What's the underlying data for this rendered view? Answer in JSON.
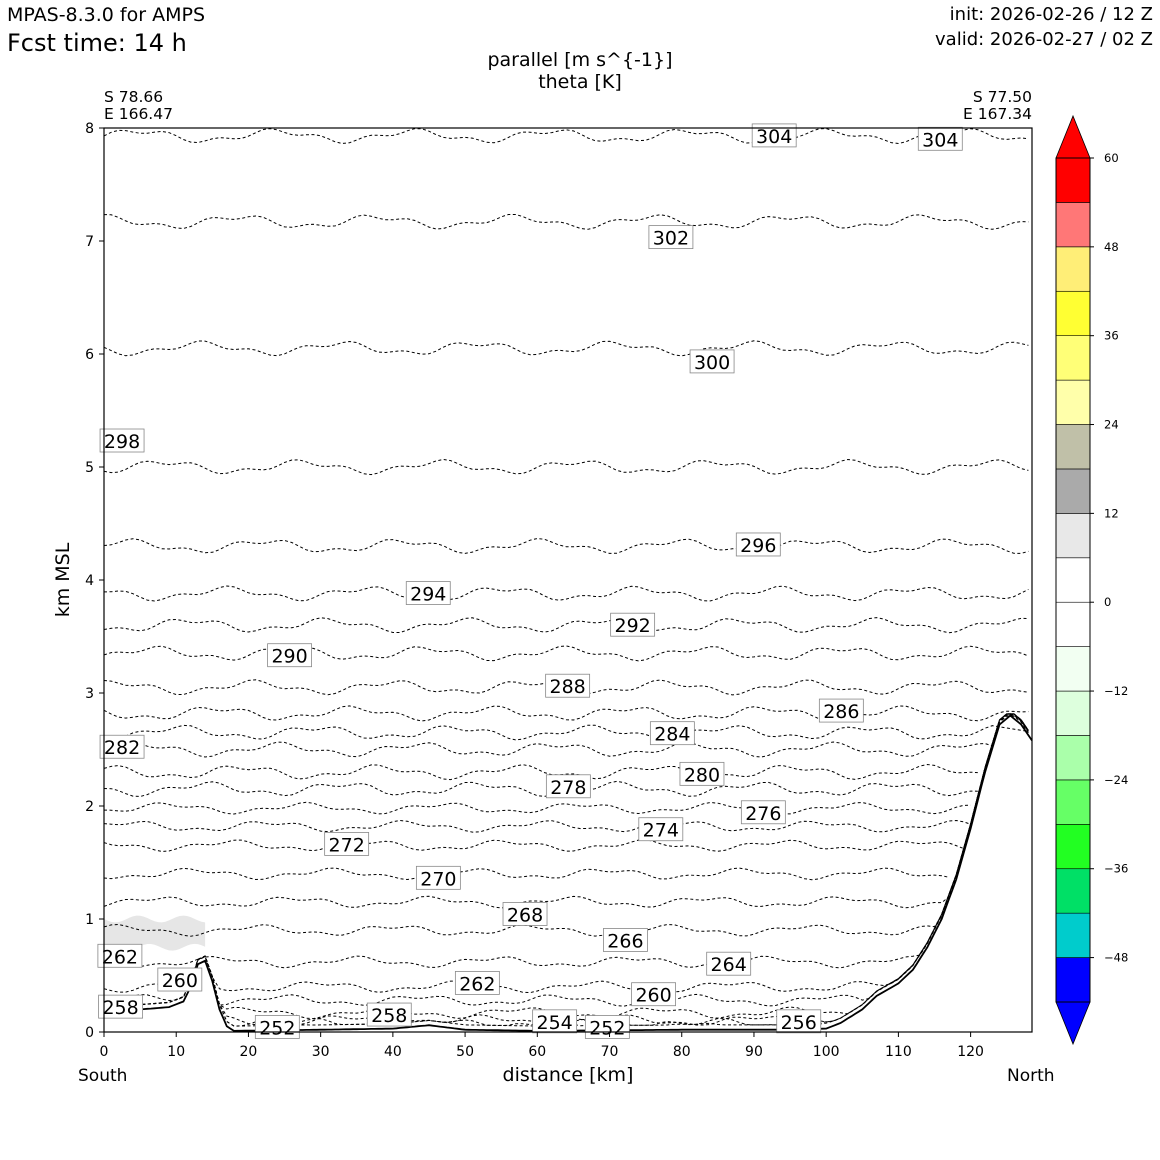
{
  "header": {
    "model": "MPAS-8.3.0 for AMPS",
    "fcst_time": "Fcst time:   14 h",
    "init": "init: 2026-02-26 / 12 Z",
    "valid": "valid: 2026-02-27 / 02 Z"
  },
  "titles": {
    "line1": "parallel [m s^{-1}]",
    "line2": "theta [K]"
  },
  "cross_section": {
    "start_lat": "S 78.66",
    "start_lon": "E 166.47",
    "end_lat": "S 77.50",
    "end_lon": "E 167.34",
    "left_end": "South",
    "right_end": "North"
  },
  "chart_data": {
    "type": "contour",
    "xlabel": "distance [km]",
    "ylabel": "km MSL",
    "xlim": [
      0,
      128.5
    ],
    "ylim": [
      0,
      8
    ],
    "xticks": [
      "0",
      "10",
      "20",
      "30",
      "40",
      "50",
      "60",
      "70",
      "80",
      "90",
      "100",
      "110",
      "120"
    ],
    "yticks": [
      "0",
      "1",
      "2",
      "3",
      "4",
      "5",
      "6",
      "7",
      "8"
    ],
    "contour_levels": [
      {
        "level": 304,
        "h": 7.93
      },
      {
        "level": 302,
        "h": 7.17
      },
      {
        "level": 300,
        "h": 6.05
      },
      {
        "level": 298,
        "h": 5.0
      },
      {
        "level": 296,
        "h": 4.3
      },
      {
        "level": 294,
        "h": 3.88
      },
      {
        "level": 292,
        "h": 3.6
      },
      {
        "level": 290,
        "h": 3.35
      },
      {
        "level": 288,
        "h": 3.05
      },
      {
        "level": 286,
        "h": 2.82
      },
      {
        "level": 284,
        "h": 2.65
      },
      {
        "level": 282,
        "h": 2.5
      },
      {
        "level": 280,
        "h": 2.3
      },
      {
        "level": 278,
        "h": 2.15
      },
      {
        "level": 276,
        "h": 1.98
      },
      {
        "level": 274,
        "h": 1.82
      },
      {
        "level": 272,
        "h": 1.65
      },
      {
        "level": 270,
        "h": 1.4
      },
      {
        "level": 268,
        "h": 1.15
      },
      {
        "level": 266,
        "h": 0.9
      },
      {
        "level": 264,
        "h": 0.62
      },
      {
        "level": 262,
        "h": 0.4
      },
      {
        "level": 260,
        "h": 0.28
      },
      {
        "level": 258,
        "h": 0.17
      },
      {
        "level": 256,
        "h": 0.1
      },
      {
        "level": 254,
        "h": 0.07
      },
      {
        "level": 252,
        "h": 0.05
      }
    ],
    "contour_labels": [
      {
        "text": "304",
        "x": 92.8,
        "y": 7.93
      },
      {
        "text": "304",
        "x": 115.8,
        "y": 7.9
      },
      {
        "text": "302",
        "x": 78.5,
        "y": 7.03
      },
      {
        "text": "300",
        "x": 84.2,
        "y": 5.93
      },
      {
        "text": "298",
        "x": 2.5,
        "y": 5.23
      },
      {
        "text": "296",
        "x": 90.6,
        "y": 4.31
      },
      {
        "text": "294",
        "x": 44.9,
        "y": 3.88
      },
      {
        "text": "292",
        "x": 73.2,
        "y": 3.6
      },
      {
        "text": "290",
        "x": 25.7,
        "y": 3.33
      },
      {
        "text": "288",
        "x": 64.2,
        "y": 3.06
      },
      {
        "text": "286",
        "x": 102.1,
        "y": 2.84
      },
      {
        "text": "284",
        "x": 78.7,
        "y": 2.64
      },
      {
        "text": "282",
        "x": 2.5,
        "y": 2.52
      },
      {
        "text": "280",
        "x": 82.8,
        "y": 2.28
      },
      {
        "text": "278",
        "x": 64.3,
        "y": 2.17
      },
      {
        "text": "276",
        "x": 91.3,
        "y": 1.94
      },
      {
        "text": "274",
        "x": 77.1,
        "y": 1.79
      },
      {
        "text": "272",
        "x": 33.6,
        "y": 1.66
      },
      {
        "text": "270",
        "x": 46.3,
        "y": 1.36
      },
      {
        "text": "268",
        "x": 58.3,
        "y": 1.04
      },
      {
        "text": "266",
        "x": 72.2,
        "y": 0.81
      },
      {
        "text": "264",
        "x": 86.5,
        "y": 0.6
      },
      {
        "text": "262",
        "x": 2.2,
        "y": 0.67
      },
      {
        "text": "262",
        "x": 51.7,
        "y": 0.43
      },
      {
        "text": "260",
        "x": 10.5,
        "y": 0.46
      },
      {
        "text": "260",
        "x": 76.1,
        "y": 0.33
      },
      {
        "text": "258",
        "x": 2.3,
        "y": 0.22
      },
      {
        "text": "258",
        "x": 39.5,
        "y": 0.15
      },
      {
        "text": "256",
        "x": 96.2,
        "y": 0.09
      },
      {
        "text": "254",
        "x": 62.4,
        "y": 0.09
      },
      {
        "text": "252",
        "x": 24.0,
        "y": 0.04
      },
      {
        "text": "252",
        "x": 69.7,
        "y": 0.04
      }
    ],
    "terrain": [
      [
        0,
        0.17
      ],
      [
        5,
        0.2
      ],
      [
        9,
        0.22
      ],
      [
        11,
        0.27
      ],
      [
        12,
        0.4
      ],
      [
        13,
        0.6
      ],
      [
        14,
        0.63
      ],
      [
        15,
        0.45
      ],
      [
        16,
        0.2
      ],
      [
        17,
        0.05
      ],
      [
        18,
        0.01
      ],
      [
        30,
        0.02
      ],
      [
        40,
        0.03
      ],
      [
        45,
        0.06
      ],
      [
        50,
        0.02
      ],
      [
        60,
        0.01
      ],
      [
        80,
        0.02
      ],
      [
        95,
        0.02
      ],
      [
        100,
        0.03
      ],
      [
        102,
        0.08
      ],
      [
        105,
        0.2
      ],
      [
        107,
        0.32
      ],
      [
        110,
        0.43
      ],
      [
        112,
        0.55
      ],
      [
        114,
        0.75
      ],
      [
        116,
        1.0
      ],
      [
        118,
        1.35
      ],
      [
        120,
        1.8
      ],
      [
        122,
        2.3
      ],
      [
        124,
        2.72
      ],
      [
        125.5,
        2.8
      ],
      [
        127,
        2.72
      ],
      [
        128.5,
        2.58
      ]
    ],
    "wind_shading": {
      "range_x": [
        0,
        14
      ],
      "range_y": [
        0.75,
        1.0
      ],
      "level": "0 to 12"
    },
    "colorbar": {
      "ticks": [
        {
          "label": "60",
          "value": 60
        },
        {
          "label": "48",
          "value": 48
        },
        {
          "label": "36",
          "value": 36
        },
        {
          "label": "24",
          "value": 24
        },
        {
          "label": "12",
          "value": 12
        },
        {
          "label": "0",
          "value": 0
        },
        {
          "label": "−12",
          "value": -12
        },
        {
          "label": "−24",
          "value": -24
        },
        {
          "label": "−36",
          "value": -36
        },
        {
          "label": "−48",
          "value": -48
        }
      ],
      "levels": [
        -54,
        -48,
        -42,
        -36,
        -30,
        -24,
        -18,
        -12,
        -6,
        0,
        6,
        12,
        18,
        24,
        30,
        36,
        42,
        48,
        54,
        60
      ],
      "colors": [
        "#0000ff",
        "#00cccc",
        "#00e066",
        "#22ff22",
        "#66ff66",
        "#aaffaa",
        "#ddffdd",
        "#f2fff2",
        "#ffffff",
        "#ffffff",
        "#e8e8e8",
        "#aaaaaa",
        "#c0c0a8",
        "#ffffaa",
        "#ffff77",
        "#ffff33",
        "#ffee77",
        "#ff7777",
        "#ff0000"
      ],
      "under_color": "#0000ff",
      "over_color": "#ff0000"
    }
  }
}
